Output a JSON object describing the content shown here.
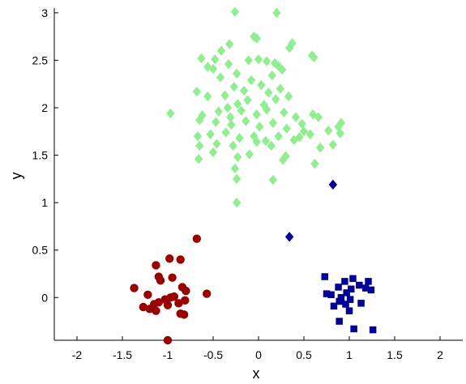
{
  "chart_data": {
    "type": "scatter",
    "title": "",
    "xlabel": "x",
    "ylabel": "y",
    "xlim": [
      -2.25,
      2.25
    ],
    "ylim": [
      -0.45,
      3.05
    ],
    "xticks": [
      -2,
      -1.5,
      -1,
      -0.5,
      0,
      0.5,
      1,
      1.5,
      2
    ],
    "xtick_labels": [
      "-2",
      "-1.5",
      "-1",
      "-0.5",
      "0",
      "0.5",
      "1",
      "1.5",
      "2"
    ],
    "yticks": [
      0,
      0.5,
      1,
      1.5,
      2,
      2.5,
      3
    ],
    "ytick_labels": [
      "0",
      "0.5",
      "1",
      "1.5",
      "2",
      "2.5",
      "3"
    ],
    "grid": false,
    "legend": false,
    "series": [
      {
        "marker": "diamond",
        "color": "#90ee90",
        "points": [
          [
            -0.26,
            3.01
          ],
          [
            0.2,
            3.0
          ],
          [
            -0.05,
            2.75
          ],
          [
            -0.02,
            2.73
          ],
          [
            0.37,
            2.68
          ],
          [
            0.34,
            2.63
          ],
          [
            0.59,
            2.55
          ],
          [
            0.61,
            2.53
          ],
          [
            -0.41,
            2.6
          ],
          [
            -0.32,
            2.67
          ],
          [
            -0.63,
            2.52
          ],
          [
            -0.48,
            2.51
          ],
          [
            -0.33,
            2.46
          ],
          [
            -0.56,
            2.43
          ],
          [
            -0.11,
            2.5
          ],
          [
            0.0,
            2.51
          ],
          [
            0.09,
            2.49
          ],
          [
            0.18,
            2.47
          ],
          [
            0.22,
            2.44
          ],
          [
            0.26,
            2.4
          ],
          [
            0.15,
            2.34
          ],
          [
            -0.24,
            2.36
          ],
          [
            -0.5,
            2.41
          ],
          [
            -0.42,
            2.32
          ],
          [
            -0.27,
            2.22
          ],
          [
            -0.08,
            2.29
          ],
          [
            0.03,
            2.24
          ],
          [
            -0.16,
            2.18
          ],
          [
            0.11,
            2.16
          ],
          [
            0.24,
            2.2
          ],
          [
            -0.56,
            2.12
          ],
          [
            -0.68,
            2.17
          ],
          [
            -0.37,
            2.13
          ],
          [
            -0.23,
            2.04
          ],
          [
            -0.12,
            2.08
          ],
          [
            0.06,
            2.03
          ],
          [
            0.19,
            2.09
          ],
          [
            0.33,
            2.12
          ],
          [
            -0.34,
            2.0
          ],
          [
            -0.44,
            1.96
          ],
          [
            -0.62,
            1.92
          ],
          [
            -0.31,
            1.9
          ],
          [
            -0.19,
            1.97
          ],
          [
            -0.02,
            1.93
          ],
          [
            0.09,
            1.98
          ],
          [
            0.28,
            1.95
          ],
          [
            0.41,
            1.9
          ],
          [
            0.6,
            1.93
          ],
          [
            0.66,
            1.9
          ],
          [
            0.48,
            1.83
          ],
          [
            -0.97,
            1.94
          ],
          [
            -0.65,
            1.87
          ],
          [
            -0.47,
            1.85
          ],
          [
            -0.3,
            1.82
          ],
          [
            -0.14,
            1.86
          ],
          [
            0.01,
            1.8
          ],
          [
            0.16,
            1.84
          ],
          [
            0.31,
            1.78
          ],
          [
            0.5,
            1.75
          ],
          [
            0.77,
            1.76
          ],
          [
            0.88,
            1.8
          ],
          [
            0.91,
            1.84
          ],
          [
            -0.67,
            1.7
          ],
          [
            -0.53,
            1.72
          ],
          [
            -0.36,
            1.74
          ],
          [
            -0.21,
            1.68
          ],
          [
            -0.05,
            1.7
          ],
          [
            0.08,
            1.65
          ],
          [
            0.22,
            1.7
          ],
          [
            0.39,
            1.66
          ],
          [
            0.45,
            1.69
          ],
          [
            0.57,
            1.72
          ],
          [
            0.9,
            1.73
          ],
          [
            -0.65,
            1.6
          ],
          [
            -0.46,
            1.62
          ],
          [
            -0.28,
            1.6
          ],
          [
            -0.02,
            1.64
          ],
          [
            0.14,
            1.6
          ],
          [
            0.68,
            1.58
          ],
          [
            0.82,
            1.61
          ],
          [
            -0.66,
            1.46
          ],
          [
            -0.5,
            1.53
          ],
          [
            -0.23,
            1.48
          ],
          [
            -0.1,
            1.51
          ],
          [
            0.3,
            1.49
          ],
          [
            0.27,
            1.45
          ],
          [
            0.62,
            1.41
          ],
          [
            -0.26,
            1.36
          ],
          [
            -0.24,
            1.25
          ],
          [
            0.16,
            1.24
          ],
          [
            -0.24,
            1.0
          ]
        ]
      },
      {
        "marker": "circle",
        "color": "#990000",
        "points": [
          [
            -0.68,
            0.62
          ],
          [
            -0.98,
            0.41
          ],
          [
            -0.86,
            0.4
          ],
          [
            -1.13,
            0.34
          ],
          [
            -1.1,
            0.22
          ],
          [
            -0.95,
            0.21
          ],
          [
            -1.08,
            0.18
          ],
          [
            -0.84,
            0.11
          ],
          [
            -0.8,
            0.07
          ],
          [
            -1.37,
            0.1
          ],
          [
            -0.57,
            0.04
          ],
          [
            -1.22,
            0.03
          ],
          [
            -0.93,
            0.01
          ],
          [
            -0.97,
            0.0
          ],
          [
            -1.03,
            -0.02
          ],
          [
            -0.81,
            -0.03
          ],
          [
            -1.1,
            -0.05
          ],
          [
            -1.15,
            -0.07
          ],
          [
            -0.88,
            -0.06
          ],
          [
            -1.0,
            -0.08
          ],
          [
            -1.27,
            -0.1
          ],
          [
            -1.2,
            -0.12
          ],
          [
            -1.13,
            -0.14
          ],
          [
            -0.86,
            -0.17
          ],
          [
            -0.82,
            -0.18
          ],
          [
            -1.0,
            -0.45
          ]
        ]
      },
      {
        "marker": "square",
        "color": "#000099",
        "points": [
          [
            0.73,
            0.22
          ],
          [
            1.04,
            0.2
          ],
          [
            0.95,
            0.17
          ],
          [
            1.21,
            0.17
          ],
          [
            1.11,
            0.13
          ],
          [
            0.88,
            0.11
          ],
          [
            1.18,
            0.1
          ],
          [
            1.02,
            0.09
          ],
          [
            1.24,
            0.08
          ],
          [
            0.97,
            0.05
          ],
          [
            0.75,
            0.04
          ],
          [
            0.8,
            0.03
          ],
          [
            0.91,
            0.0
          ],
          [
            1.01,
            -0.02
          ],
          [
            0.89,
            -0.04
          ],
          [
            0.96,
            -0.07
          ],
          [
            1.13,
            -0.06
          ],
          [
            0.83,
            -0.09
          ],
          [
            1.0,
            -0.14
          ],
          [
            0.89,
            -0.25
          ],
          [
            1.05,
            -0.33
          ],
          [
            1.26,
            -0.34
          ]
        ]
      },
      {
        "marker": "diamond",
        "color": "#000099",
        "points": [
          [
            0.82,
            1.19
          ],
          [
            0.34,
            0.64
          ]
        ]
      }
    ]
  }
}
